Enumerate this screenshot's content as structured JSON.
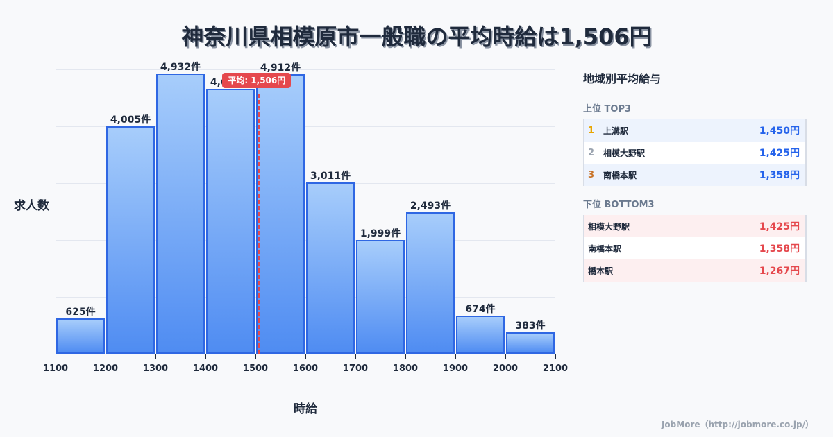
{
  "title": "神奈川県相模原市一般職の平均時給は1,506円",
  "chart_data": {
    "type": "bar",
    "title": "神奈川県相模原市一般職の平均時給は1,506円",
    "xlabel": "時給",
    "ylabel": "求人数",
    "categories": [
      "1100-1200",
      "1200-1300",
      "1300-1400",
      "1400-1500",
      "1500-1600",
      "1600-1700",
      "1700-1800",
      "1800-1900",
      "1900-2000",
      "2000-2100"
    ],
    "bin_edges": [
      1100,
      1200,
      1300,
      1400,
      1500,
      1600,
      1700,
      1800,
      1900,
      2000,
      2100
    ],
    "values": [
      625,
      4005,
      4932,
      4662,
      4912,
      3011,
      1999,
      2493,
      674,
      383
    ],
    "value_labels": [
      "625件",
      "4,005件",
      "4,932件",
      "4,662件",
      "4,912件",
      "3,011件",
      "1,999件",
      "2,493件",
      "674件",
      "383件"
    ],
    "x_tick_labels": [
      "1100",
      "1200",
      "1300",
      "1400",
      "1500",
      "1600",
      "1700",
      "1800",
      "1900",
      "2000",
      "2100"
    ],
    "xlim": [
      1100,
      2100
    ],
    "ylim": [
      0,
      5000
    ],
    "grid": true,
    "annotations": [
      {
        "type": "vline",
        "x": 1506,
        "label": "平均: 1,506円",
        "color": "#e5484d"
      }
    ],
    "bar_color": "#4f8cf2",
    "bar_edge_color": "#2f67e3"
  },
  "panel": {
    "title": "地域別平均給与",
    "top_title": "上位 TOP3",
    "top": [
      {
        "rank": "1",
        "name": "上溝駅",
        "value": "1,450円",
        "rank_color": "#e8a500"
      },
      {
        "rank": "2",
        "name": "相模大野駅",
        "value": "1,425円",
        "rank_color": "#9aa3af"
      },
      {
        "rank": "3",
        "name": "南橋本駅",
        "value": "1,358円",
        "rank_color": "#c8742a"
      }
    ],
    "bottom_title": "下位 BOTTOM3",
    "bottom": [
      {
        "name": "相模大野駅",
        "value": "1,425円"
      },
      {
        "name": "南橋本駅",
        "value": "1,358円"
      },
      {
        "name": "橋本駅",
        "value": "1,267円"
      }
    ]
  },
  "footer": "JobMore（http://jobmore.co.jp/）"
}
